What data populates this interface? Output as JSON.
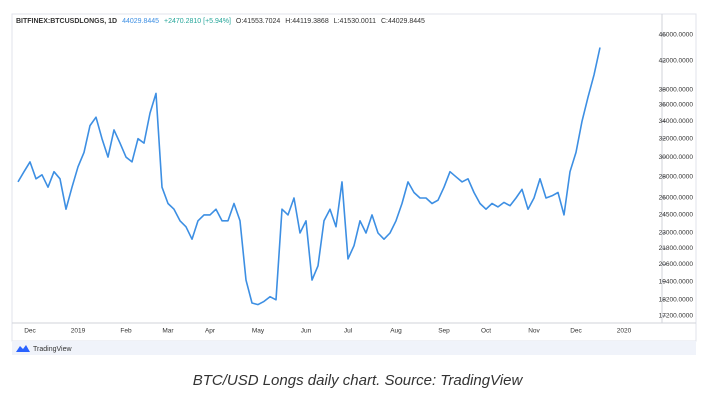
{
  "chart_data": {
    "type": "line",
    "title": "BITFINEX:BTCUSDLONGS, 1D",
    "last": "44029.8445",
    "change": "+2470.2810 [+5.94%]",
    "ohlc": [
      "O:41553.7024",
      "H:44119.3868",
      "L:41530.0011",
      "C:44029.8445"
    ],
    "watermark": "TradingView",
    "caption": "BTC/USD Longs daily chart. Source: TradingView",
    "log": true,
    "color": "#3d8fe3",
    "categories": [
      null,
      null,
      "Dec",
      null,
      null,
      null,
      null,
      null,
      null,
      null,
      "2019",
      null,
      null,
      null,
      null,
      null,
      null,
      null,
      "Feb",
      null,
      null,
      null,
      null,
      null,
      null,
      "Mar",
      null,
      null,
      null,
      null,
      null,
      null,
      "Apr",
      null,
      null,
      null,
      null,
      null,
      null,
      null,
      "May",
      null,
      null,
      null,
      null,
      null,
      null,
      null,
      "Jun",
      null,
      null,
      null,
      null,
      null,
      null,
      "Jul",
      null,
      null,
      null,
      null,
      null,
      null,
      null,
      "Aug",
      null,
      null,
      null,
      null,
      null,
      null,
      null,
      "Sep",
      null,
      null,
      null,
      null,
      null,
      null,
      "Oct",
      null,
      null,
      null,
      null,
      null,
      null,
      null,
      "Nov",
      null,
      null,
      null,
      null,
      null,
      null,
      "Dec",
      null,
      null,
      null,
      null,
      null,
      null,
      null,
      "2020"
    ],
    "values": [
      27500,
      28500,
      29500,
      27800,
      28200,
      27000,
      28500,
      27800,
      25000,
      27000,
      29000,
      30500,
      33500,
      34500,
      32000,
      30000,
      33000,
      31500,
      30000,
      29500,
      32000,
      31500,
      35000,
      37500,
      27000,
      25500,
      25000,
      24000,
      23500,
      22500,
      24000,
      24500,
      24500,
      25000,
      24000,
      24000,
      25500,
      24000,
      19500,
      18000,
      17900,
      18100,
      18400,
      18200,
      25000,
      24500,
      26000,
      23000,
      24000,
      19500,
      20500,
      24000,
      25000,
      23500,
      27500,
      21000,
      22000,
      24000,
      23000,
      24500,
      23000,
      22500,
      23000,
      24000,
      25500,
      27500,
      26500,
      26000,
      26000,
      25500,
      25800,
      27000,
      28500,
      28000,
      27500,
      27800,
      26500,
      25500,
      25000,
      25500,
      25200,
      25600,
      25300,
      26000,
      26800,
      25000,
      26000,
      27800,
      26000,
      26200,
      26500,
      24500,
      28500,
      30500,
      34000,
      37000,
      40000,
      44029.8445,
      null,
      null,
      null,
      null
    ],
    "ylim": [
      16840,
      47640
    ],
    "yticks": [
      {
        "value": 46000,
        "label": "46000.0000"
      },
      {
        "value": 42000,
        "label": "42000.0000"
      },
      {
        "value": 38000,
        "label": "38000.0000"
      },
      {
        "value": 36000,
        "label": "36000.0000"
      },
      {
        "value": 34000,
        "label": "34000.0000"
      },
      {
        "value": 32000,
        "label": "32000.0000"
      },
      {
        "value": 30000,
        "label": "30000.0000"
      },
      {
        "value": 28000,
        "label": "28000.0000"
      },
      {
        "value": 26000,
        "label": "26000.0000"
      },
      {
        "value": 24500,
        "label": "24500.0000"
      },
      {
        "value": 23000,
        "label": "23000.0000"
      },
      {
        "value": 21800,
        "label": "21800.0000"
      },
      {
        "value": 20600,
        "label": "20600.0000"
      },
      {
        "value": 19400,
        "label": "19400.0000"
      },
      {
        "value": 18200,
        "label": "18200.0000"
      },
      {
        "value": 17200,
        "label": "17200.0000"
      }
    ]
  }
}
